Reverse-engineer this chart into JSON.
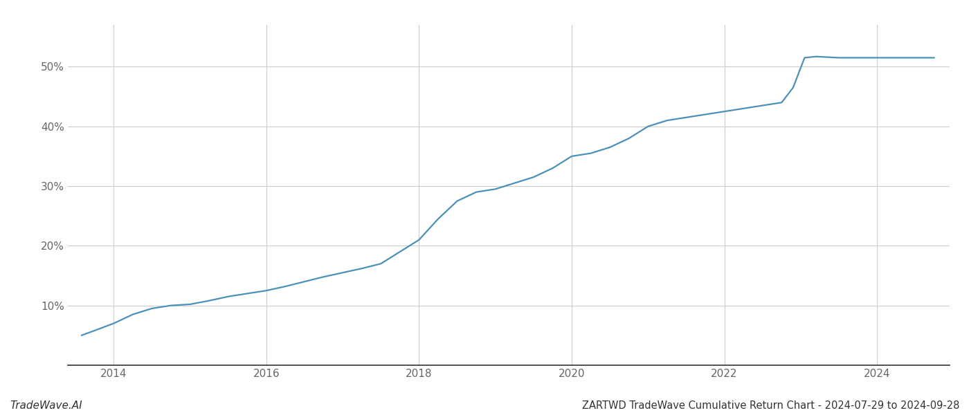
{
  "title": "ZARTWD TradeWave Cumulative Return Chart - 2024-07-29 to 2024-09-28",
  "watermark": "TradeWave.AI",
  "line_color": "#4a90b8",
  "background_color": "#ffffff",
  "grid_color": "#cccccc",
  "x_data": [
    2013.58,
    2013.75,
    2014.0,
    2014.25,
    2014.5,
    2014.75,
    2015.0,
    2015.25,
    2015.5,
    2015.75,
    2016.0,
    2016.25,
    2016.5,
    2016.75,
    2017.0,
    2017.25,
    2017.5,
    2017.75,
    2018.0,
    2018.25,
    2018.5,
    2018.75,
    2019.0,
    2019.25,
    2019.5,
    2019.75,
    2020.0,
    2020.25,
    2020.5,
    2020.75,
    2021.0,
    2021.25,
    2021.5,
    2021.75,
    2022.0,
    2022.25,
    2022.5,
    2022.75,
    2022.9,
    2023.05,
    2023.2,
    2023.5,
    2023.75,
    2024.0,
    2024.5,
    2024.75
  ],
  "y_data": [
    5.0,
    5.8,
    7.0,
    8.5,
    9.5,
    10.0,
    10.2,
    10.8,
    11.5,
    12.0,
    12.5,
    13.2,
    14.0,
    14.8,
    15.5,
    16.2,
    17.0,
    19.0,
    21.0,
    24.5,
    27.5,
    29.0,
    29.5,
    30.5,
    31.5,
    33.0,
    35.0,
    35.5,
    36.5,
    38.0,
    40.0,
    41.0,
    41.5,
    42.0,
    42.5,
    43.0,
    43.5,
    44.0,
    46.5,
    51.5,
    51.7,
    51.5,
    51.5,
    51.5,
    51.5,
    51.5
  ],
  "ylim": [
    0,
    57
  ],
  "xlim": [
    2013.4,
    2024.95
  ],
  "yticks": [
    10,
    20,
    30,
    40,
    50
  ],
  "xticks": [
    2014,
    2016,
    2018,
    2020,
    2022,
    2024
  ],
  "title_fontsize": 10.5,
  "watermark_fontsize": 11,
  "axis_fontsize": 11,
  "line_width": 1.6
}
